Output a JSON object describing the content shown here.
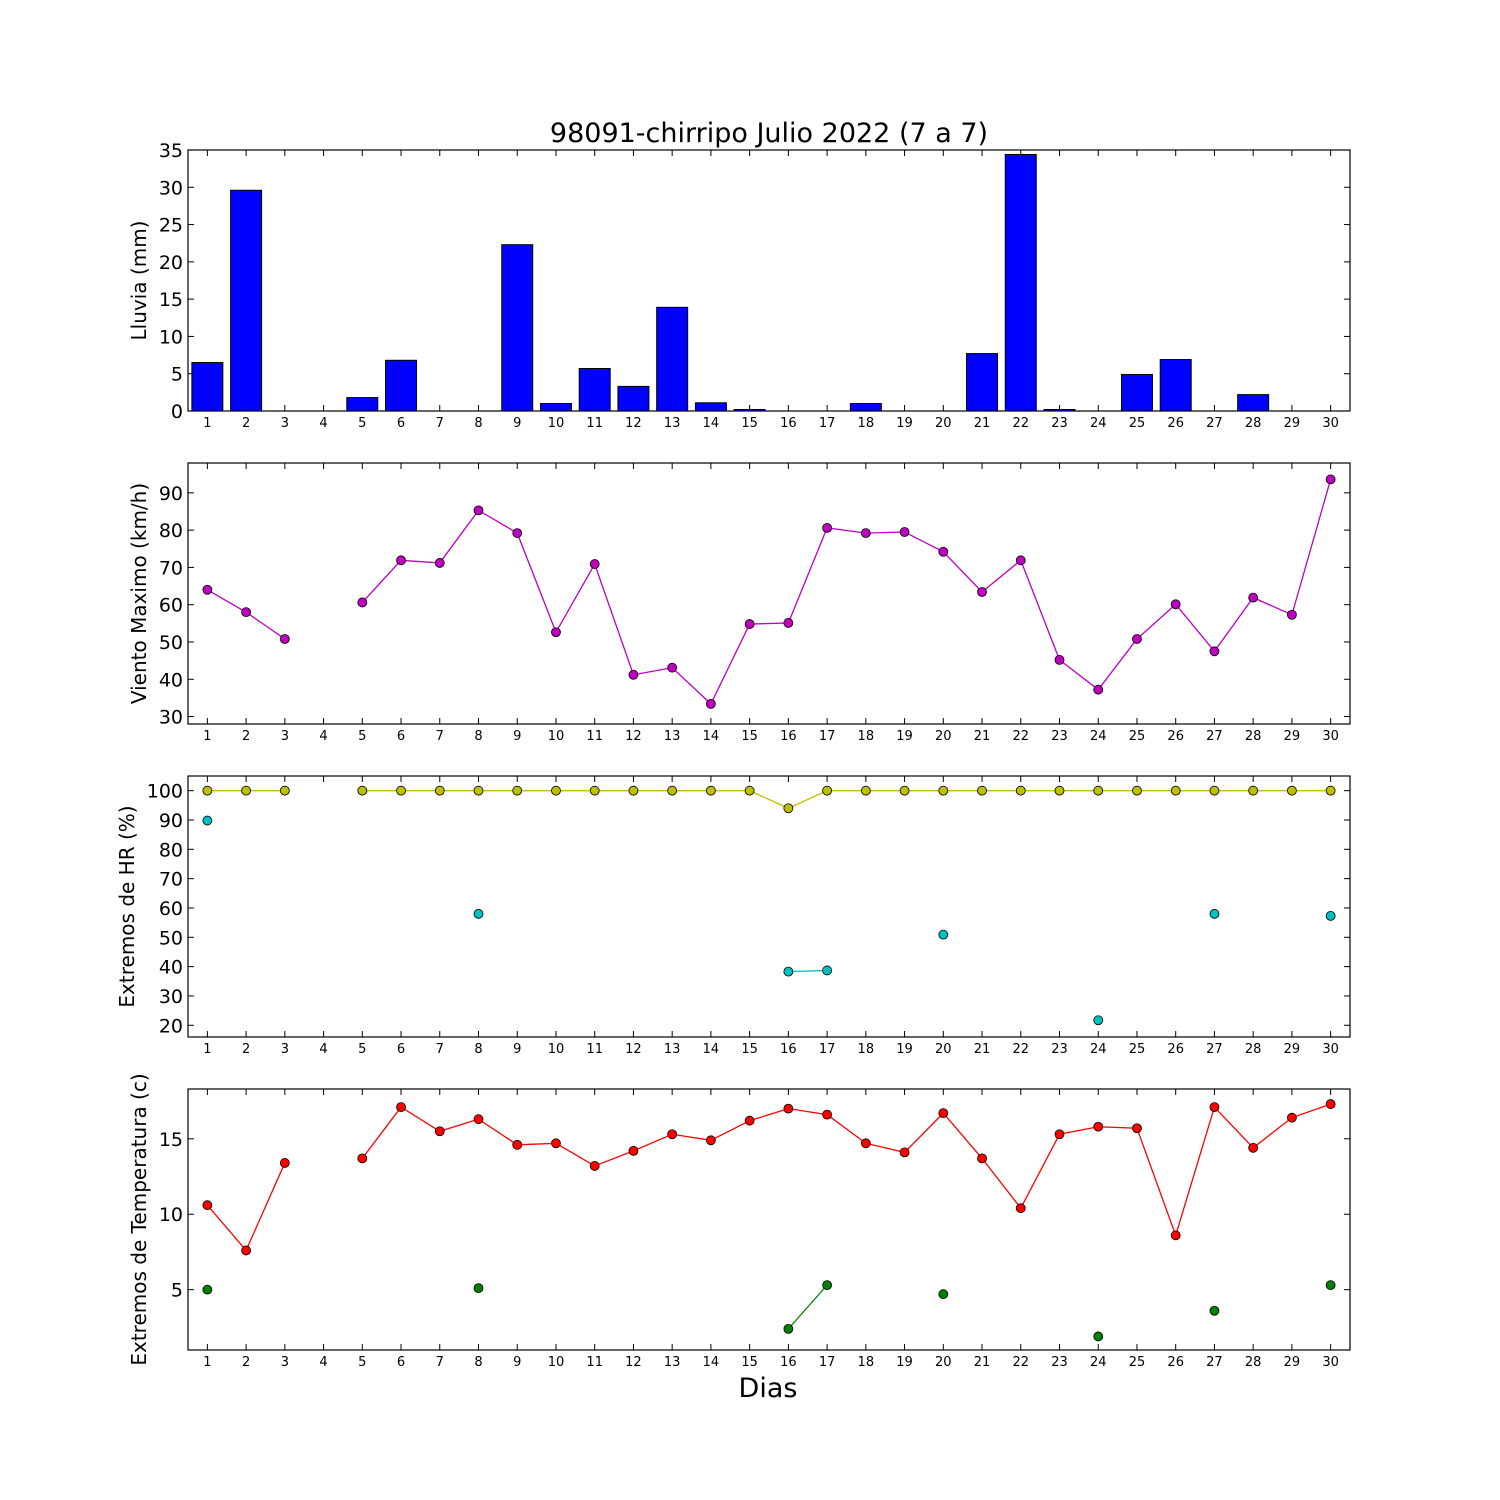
{
  "chart_data": {
    "type": "multi-panel",
    "title": "98091-chirripo Julio 2022  (7 a 7)",
    "xlabel": "Dias",
    "x": [
      1,
      2,
      3,
      4,
      5,
      6,
      7,
      8,
      9,
      10,
      11,
      12,
      13,
      14,
      15,
      16,
      17,
      18,
      19,
      20,
      21,
      22,
      23,
      24,
      25,
      26,
      27,
      28,
      29,
      30
    ],
    "panels": [
      {
        "type": "bar",
        "ylabel": "Lluvia (mm)",
        "ylim": [
          0,
          35
        ],
        "yticks": [
          0,
          5,
          10,
          15,
          20,
          25,
          30,
          35
        ],
        "series": [
          {
            "color": "#0000ff",
            "values": [
              6.5,
              29.6,
              0,
              null,
              1.8,
              6.8,
              0,
              0,
              22.3,
              1.0,
              5.7,
              3.3,
              13.9,
              1.1,
              0.2,
              0,
              0,
              1.0,
              0,
              0,
              7.7,
              34.4,
              0.2,
              0,
              4.9,
              6.9,
              0,
              2.2,
              0,
              0
            ]
          }
        ]
      },
      {
        "type": "line",
        "ylabel": "Viento Maximo (km/h)",
        "ylim": [
          28,
          98
        ],
        "yticks": [
          30,
          40,
          50,
          60,
          70,
          80,
          90
        ],
        "series": [
          {
            "color": "#bf00bf",
            "values": [
              64,
              58,
              50.8,
              null,
              60.6,
              71.9,
              71.2,
              85.3,
              79.2,
              52.6,
              70.9,
              41.2,
              43.1,
              33.4,
              54.8,
              55.1,
              80.6,
              79.2,
              79.5,
              74.2,
              63.4,
              71.9,
              45.2,
              37.2,
              50.8,
              60.1,
              47.5,
              61.9,
              57.3,
              93.6
            ]
          }
        ]
      },
      {
        "type": "line",
        "ylabel": "Extremos de HR (%)",
        "ylim": [
          16,
          105
        ],
        "yticks": [
          20,
          30,
          40,
          50,
          60,
          70,
          80,
          90,
          100
        ],
        "series": [
          {
            "color": "#bfbf00",
            "values": [
              100,
              100,
              100,
              null,
              100,
              100,
              100,
              100,
              100,
              100,
              100,
              100,
              100,
              100,
              100,
              94,
              100,
              100,
              100,
              100,
              100,
              100,
              100,
              100,
              100,
              100,
              100,
              100,
              100,
              100
            ]
          },
          {
            "color": "#00bfbf",
            "values": [
              89.8,
              null,
              null,
              null,
              null,
              null,
              null,
              58,
              null,
              null,
              null,
              null,
              null,
              null,
              null,
              38.3,
              38.7,
              null,
              null,
              50.9,
              null,
              null,
              null,
              21.7,
              null,
              null,
              58,
              null,
              null,
              57.3
            ]
          }
        ]
      },
      {
        "type": "line",
        "ylabel": "Extremos de Temperatura (c)",
        "ylim": [
          1,
          18.3
        ],
        "yticks": [
          5,
          10,
          15
        ],
        "series": [
          {
            "color": "#ff0000",
            "values": [
              10.6,
              7.6,
              13.4,
              null,
              13.7,
              17.1,
              15.5,
              16.3,
              14.6,
              14.7,
              13.2,
              14.2,
              15.3,
              14.9,
              16.2,
              17.0,
              16.6,
              14.7,
              14.1,
              16.7,
              13.7,
              10.4,
              15.3,
              15.8,
              15.7,
              8.6,
              17.1,
              14.4,
              16.4,
              17.3
            ]
          },
          {
            "color": "#007f00",
            "values": [
              5.0,
              null,
              null,
              null,
              null,
              null,
              null,
              5.1,
              null,
              null,
              null,
              null,
              null,
              null,
              null,
              2.4,
              5.3,
              null,
              null,
              4.7,
              null,
              null,
              null,
              1.9,
              null,
              null,
              3.6,
              null,
              null,
              5.3
            ]
          }
        ]
      }
    ]
  }
}
